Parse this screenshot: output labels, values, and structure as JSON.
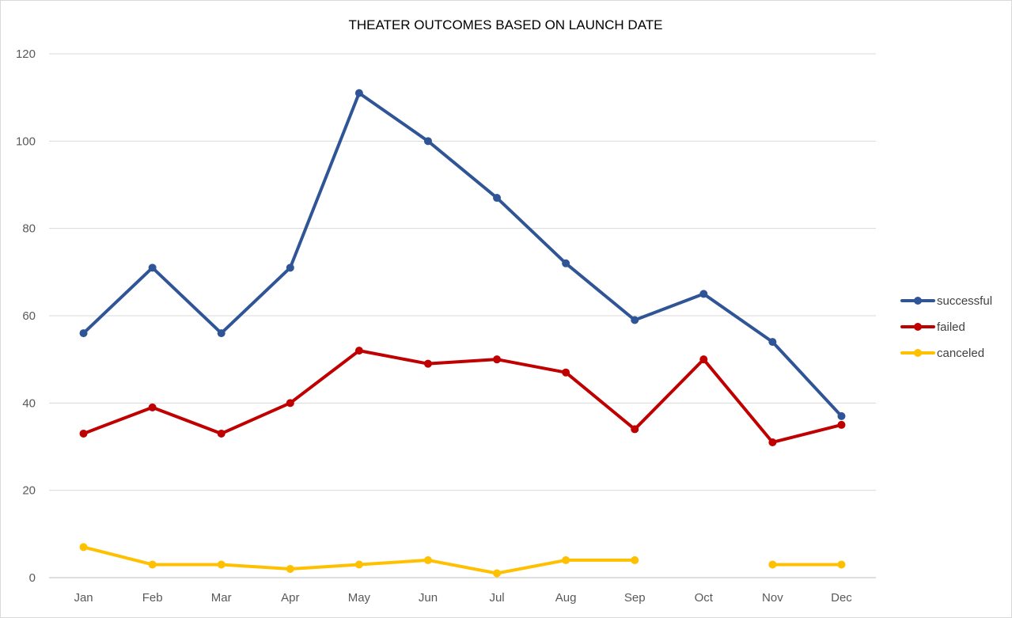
{
  "chart_data": {
    "type": "line",
    "title": "THEATER OUTCOMES BASED ON LAUNCH DATE",
    "xlabel": "",
    "ylabel": "",
    "categories": [
      "Jan",
      "Feb",
      "Mar",
      "Apr",
      "May",
      "Jun",
      "Jul",
      "Aug",
      "Sep",
      "Oct",
      "Nov",
      "Dec"
    ],
    "ylim": [
      0,
      120
    ],
    "yticks": [
      0,
      20,
      40,
      60,
      80,
      100,
      120
    ],
    "grid": true,
    "legend_position": "right",
    "series": [
      {
        "name": "successful",
        "color": "#2f5597",
        "values": [
          56,
          71,
          56,
          71,
          111,
          100,
          87,
          72,
          59,
          65,
          54,
          37
        ]
      },
      {
        "name": "failed",
        "color": "#c00000",
        "values": [
          33,
          39,
          33,
          40,
          52,
          49,
          50,
          47,
          34,
          50,
          31,
          35
        ]
      },
      {
        "name": "canceled",
        "color": "#ffc000",
        "values": [
          7,
          3,
          3,
          2,
          3,
          4,
          1,
          4,
          4,
          null,
          3,
          3
        ]
      }
    ]
  }
}
